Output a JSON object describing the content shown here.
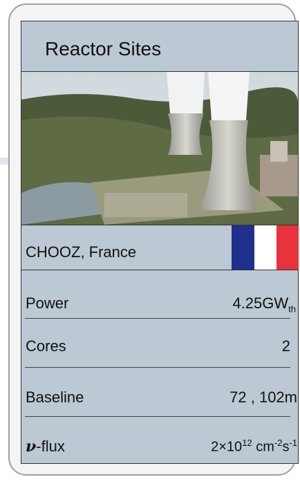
{
  "header": {
    "title": "Reactor Sites"
  },
  "location": "CHOOZ, France",
  "rows": [
    {
      "label": "Power",
      "value": "4.25GW",
      "value_sub": "th"
    },
    {
      "label": "Cores",
      "value": "2"
    },
    {
      "label": "Baseline",
      "value": "72 , 102m"
    },
    {
      "symbol": "ν",
      "label": "-flux",
      "value": "2×10",
      "value_sup": "12",
      "unit": " cm",
      "unit_sup": "-2",
      "unit2": "s",
      "unit2_sup": "-1"
    }
  ]
}
